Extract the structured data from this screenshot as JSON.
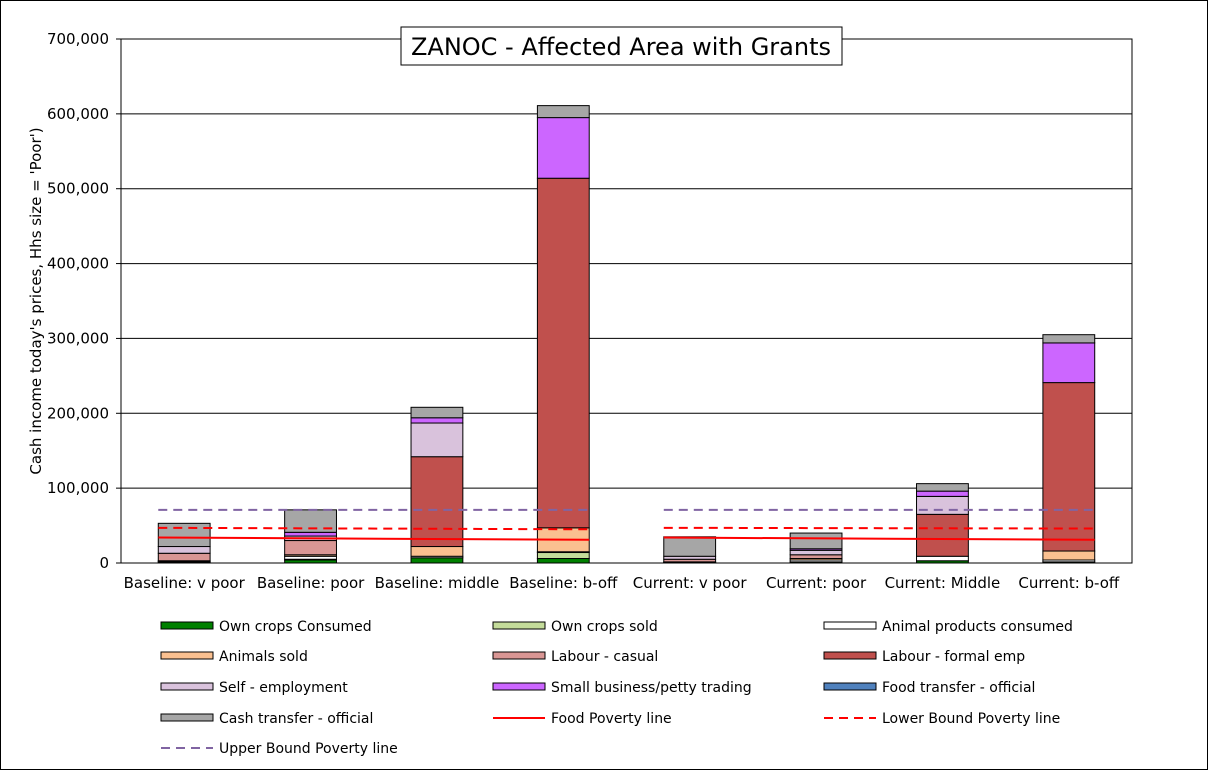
{
  "chart_data": {
    "type": "bar",
    "stacked": true,
    "title": "ZANOC - Affected Area with Grants",
    "ylabel": "Cash income today's prices, Hhs size = 'Poor')",
    "xlabel": "",
    "ylim": [
      0,
      700000
    ],
    "yticks": [
      0,
      100000,
      200000,
      300000,
      400000,
      500000,
      600000,
      700000
    ],
    "ytick_labels": [
      "0",
      "100,000",
      "200,000",
      "300,000",
      "400,000",
      "500,000",
      "600,000",
      "700,000"
    ],
    "grid": true,
    "legend_position": "bottom",
    "categories": [
      "Baseline: v poor",
      "Baseline: poor",
      "Baseline: middle",
      "Baseline: b-off",
      "Current: v poor",
      "Current: poor",
      "Current: Middle",
      "Current: b-off"
    ],
    "series": [
      {
        "name": "Own crops Consumed",
        "color": "#008000",
        "values": [
          1000,
          4000,
          7000,
          6000,
          500,
          1500,
          3000,
          1500
        ]
      },
      {
        "name": "Own crops sold",
        "color": "#c4dc9a",
        "values": [
          0,
          1000,
          0,
          8000,
          0,
          0,
          0,
          0
        ]
      },
      {
        "name": "Animal products consumed",
        "color": "#ffffff",
        "values": [
          1000,
          4000,
          2000,
          1000,
          500,
          2500,
          6000,
          2500
        ]
      },
      {
        "name": "Animals sold",
        "color": "#fac090",
        "values": [
          1000,
          2000,
          13000,
          32000,
          500,
          2000,
          0,
          12000
        ]
      },
      {
        "name": "Labour - casual",
        "color": "#d99694",
        "values": [
          10000,
          19000,
          0,
          0,
          3500,
          5000,
          0,
          0
        ]
      },
      {
        "name": "Labour - formal emp",
        "color": "#c0504d",
        "values": [
          0,
          0,
          120000,
          467000,
          0,
          0,
          56000,
          225000
        ]
      },
      {
        "name": "Self - employment",
        "color": "#d9c2dc",
        "values": [
          9000,
          6000,
          45000,
          0,
          4000,
          6000,
          24000,
          0
        ]
      },
      {
        "name": "Small business/petty trading",
        "color": "#cc66ff",
        "values": [
          0,
          5000,
          7000,
          81000,
          0,
          2000,
          7000,
          53000
        ]
      },
      {
        "name": "Food transfer - official",
        "color": "#4f81bd",
        "values": [
          0,
          0,
          0,
          0,
          0,
          0,
          0,
          0
        ]
      },
      {
        "name": "Cash transfer - official",
        "color": "#a6a6a6",
        "values": [
          31000,
          30000,
          14000,
          16000,
          26000,
          21000,
          10000,
          11000
        ]
      }
    ],
    "lines": [
      {
        "name": "Food Poverty line",
        "color": "#ff0000",
        "style": "solid",
        "segments": [
          [
            34000,
            31000
          ],
          [
            34000,
            31000
          ]
        ]
      },
      {
        "name": "Lower Bound Poverty line",
        "color": "#ff0000",
        "style": "dashed",
        "segments": [
          [
            47000,
            45000
          ],
          [
            47000,
            46000
          ]
        ]
      },
      {
        "name": "Upper Bound Poverty line",
        "color": "#8064a2",
        "style": "dashed",
        "segments": [
          [
            71000,
            71000
          ],
          [
            71000,
            71000
          ]
        ]
      }
    ]
  }
}
